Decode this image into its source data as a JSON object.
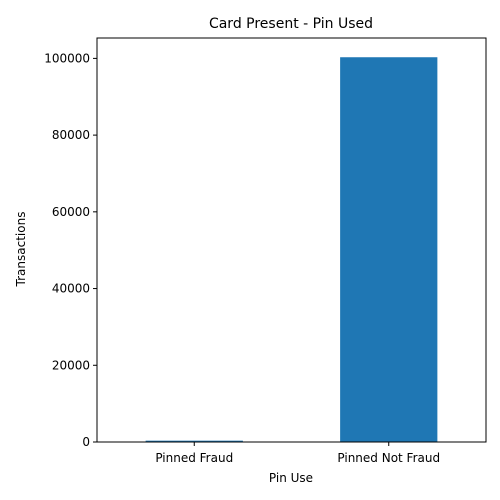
{
  "chart_data": {
    "type": "bar",
    "title": "Card Present - Pin Used",
    "xlabel": "Pin Use",
    "ylabel": "Transactions",
    "categories": [
      "Pinned Fraud",
      "Pinned Not Fraud"
    ],
    "values": [
      350,
      100300
    ],
    "ylim": [
      0,
      105315
    ],
    "yticks": [
      0,
      20000,
      40000,
      60000,
      80000,
      100000
    ],
    "yticklabels": [
      "0",
      "20000",
      "40000",
      "60000",
      "80000",
      "100000"
    ],
    "grid": false,
    "legend": "none",
    "bar_color": "#1f77b4"
  }
}
